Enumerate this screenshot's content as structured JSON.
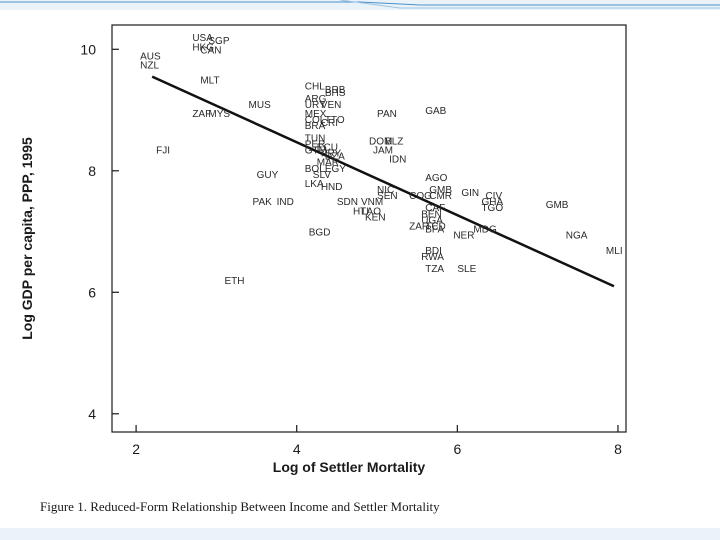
{
  "slide": {
    "accent_color": "#4a90c8",
    "band_color": "#eaf3fa"
  },
  "caption": "Figure 1. Reduced-Form Relationship Between Income and Settler Mortality",
  "chart_data": {
    "type": "scatter",
    "title": "",
    "xlabel": "Log of Settler Mortality",
    "ylabel": "Log GDP per capita, PPP, 1995",
    "xlim": [
      1.7,
      8.1
    ],
    "ylim": [
      3.7,
      10.4
    ],
    "xticks": [
      2,
      4,
      6,
      8
    ],
    "yticks": [
      4,
      6,
      8,
      10
    ],
    "grid": false,
    "series": [
      {
        "points": [
          {
            "label": "USA",
            "x": 2.7,
            "y": 10.2
          },
          {
            "label": "SGP",
            "x": 2.9,
            "y": 10.15
          },
          {
            "label": "HKG",
            "x": 2.7,
            "y": 10.05
          },
          {
            "label": "CAN",
            "x": 2.8,
            "y": 10.0
          },
          {
            "label": "AUS",
            "x": 2.05,
            "y": 9.9
          },
          {
            "label": "NZL",
            "x": 2.05,
            "y": 9.75
          },
          {
            "label": "MLT",
            "x": 2.8,
            "y": 9.5
          },
          {
            "label": "MUS",
            "x": 3.4,
            "y": 9.1
          },
          {
            "label": "ZAF",
            "x": 2.7,
            "y": 8.95
          },
          {
            "label": "MYS",
            "x": 2.9,
            "y": 8.95
          },
          {
            "label": "FJI",
            "x": 2.25,
            "y": 8.35
          },
          {
            "label": "GUY",
            "x": 3.5,
            "y": 7.95
          },
          {
            "label": "PAK",
            "x": 3.45,
            "y": 7.5
          },
          {
            "label": "IND",
            "x": 3.75,
            "y": 7.5
          },
          {
            "label": "ETH",
            "x": 3.1,
            "y": 6.2
          },
          {
            "label": "BGD",
            "x": 4.15,
            "y": 7.0
          },
          {
            "label": "CHL",
            "x": 4.1,
            "y": 9.4
          },
          {
            "label": "BRB",
            "x": 4.35,
            "y": 9.35
          },
          {
            "label": "BHS",
            "x": 4.35,
            "y": 9.3
          },
          {
            "label": "ARG",
            "x": 4.1,
            "y": 9.2
          },
          {
            "label": "URY",
            "x": 4.1,
            "y": 9.1
          },
          {
            "label": "VEN",
            "x": 4.3,
            "y": 9.1
          },
          {
            "label": "MEX",
            "x": 4.1,
            "y": 8.95
          },
          {
            "label": "COL",
            "x": 4.1,
            "y": 8.85
          },
          {
            "label": "TTO",
            "x": 4.35,
            "y": 8.85
          },
          {
            "label": "CRI",
            "x": 4.3,
            "y": 8.8
          },
          {
            "label": "BRA",
            "x": 4.1,
            "y": 8.75
          },
          {
            "label": "TUN",
            "x": 4.1,
            "y": 8.55
          },
          {
            "label": "PER",
            "x": 4.1,
            "y": 8.45
          },
          {
            "label": "ECU",
            "x": 4.25,
            "y": 8.4
          },
          {
            "label": "GTM",
            "x": 4.1,
            "y": 8.35
          },
          {
            "label": "PRY",
            "x": 4.3,
            "y": 8.3
          },
          {
            "label": "DZA",
            "x": 4.35,
            "y": 8.25
          },
          {
            "label": "MAR",
            "x": 4.25,
            "y": 8.15
          },
          {
            "label": "BOL",
            "x": 4.1,
            "y": 8.05
          },
          {
            "label": "EGY",
            "x": 4.35,
            "y": 8.05
          },
          {
            "label": "SLV",
            "x": 4.2,
            "y": 7.95
          },
          {
            "label": "LKA",
            "x": 4.1,
            "y": 7.8
          },
          {
            "label": "HND",
            "x": 4.3,
            "y": 7.75
          },
          {
            "label": "SDN",
            "x": 4.5,
            "y": 7.5
          },
          {
            "label": "PAN",
            "x": 5.0,
            "y": 8.95
          },
          {
            "label": "DOM",
            "x": 4.9,
            "y": 8.5
          },
          {
            "label": "BLZ",
            "x": 5.1,
            "y": 8.5
          },
          {
            "label": "JAM",
            "x": 4.95,
            "y": 8.35
          },
          {
            "label": "IDN",
            "x": 5.15,
            "y": 8.2
          },
          {
            "label": "NIC",
            "x": 5.0,
            "y": 7.7
          },
          {
            "label": "SEN",
            "x": 5.0,
            "y": 7.6
          },
          {
            "label": "VNM",
            "x": 4.8,
            "y": 7.5
          },
          {
            "label": "HTI",
            "x": 4.7,
            "y": 7.35
          },
          {
            "label": "LAO",
            "x": 4.8,
            "y": 7.35
          },
          {
            "label": "KEN",
            "x": 4.85,
            "y": 7.25
          },
          {
            "label": "GAB",
            "x": 5.6,
            "y": 9.0
          },
          {
            "label": "AGO",
            "x": 5.6,
            "y": 7.9
          },
          {
            "label": "GMB",
            "x": 5.65,
            "y": 7.7
          },
          {
            "label": "COG",
            "x": 5.4,
            "y": 7.6
          },
          {
            "label": "CMR",
            "x": 5.65,
            "y": 7.6
          },
          {
            "label": "CAF",
            "x": 5.6,
            "y": 7.4
          },
          {
            "label": "BEN",
            "x": 5.55,
            "y": 7.3
          },
          {
            "label": "UGA",
            "x": 5.55,
            "y": 7.2
          },
          {
            "label": "ZAR",
            "x": 5.4,
            "y": 7.1
          },
          {
            "label": "TCD",
            "x": 5.6,
            "y": 7.1
          },
          {
            "label": "BFA",
            "x": 5.6,
            "y": 7.05
          },
          {
            "label": "NER",
            "x": 5.95,
            "y": 6.95
          },
          {
            "label": "MDG",
            "x": 6.2,
            "y": 7.05
          },
          {
            "label": "BDI",
            "x": 5.6,
            "y": 6.7
          },
          {
            "label": "RWA",
            "x": 5.55,
            "y": 6.6
          },
          {
            "label": "TZA",
            "x": 5.6,
            "y": 6.4
          },
          {
            "label": "SLE",
            "x": 6.0,
            "y": 6.4
          },
          {
            "label": "GIN",
            "x": 6.05,
            "y": 7.65
          },
          {
            "label": "CIV",
            "x": 6.35,
            "y": 7.6
          },
          {
            "label": "GHA",
            "x": 6.3,
            "y": 7.5
          },
          {
            "label": "TGO",
            "x": 6.3,
            "y": 7.4
          },
          {
            "label": "GMB",
            "x": 7.1,
            "y": 7.45
          },
          {
            "label": "NGA",
            "x": 7.35,
            "y": 6.95
          },
          {
            "label": "MLI",
            "x": 7.85,
            "y": 6.7
          }
        ]
      }
    ],
    "fit_line": {
      "x": [
        2.2,
        7.95
      ],
      "y": [
        9.55,
        6.1
      ]
    }
  }
}
